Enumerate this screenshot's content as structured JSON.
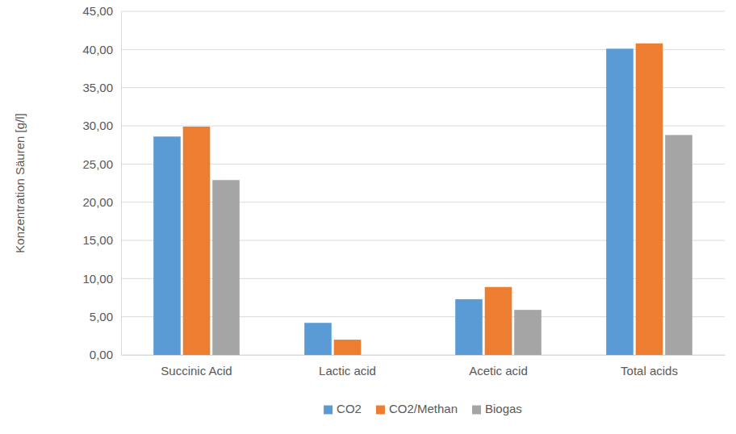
{
  "chart_data": {
    "type": "bar",
    "y_label": "Konzentration Säuren [g/l]",
    "categories": [
      "Succinic Acid",
      "Lactic acid",
      "Acetic acid",
      "Total acids"
    ],
    "series": [
      {
        "name": "CO2",
        "color": "#5b9bd5",
        "values": [
          28.6,
          4.2,
          7.3,
          40.1
        ]
      },
      {
        "name": "CO2/Methan",
        "color": "#ed7d31",
        "values": [
          29.9,
          2.0,
          8.9,
          40.8
        ]
      },
      {
        "name": "Biogas",
        "color": "#a5a5a5",
        "values": [
          22.9,
          0,
          5.9,
          28.8
        ]
      }
    ],
    "ylim": [
      0,
      45
    ],
    "yticks": [
      {
        "value": 0,
        "label": "0,00"
      },
      {
        "value": 5,
        "label": "5,00"
      },
      {
        "value": 10,
        "label": "10,00"
      },
      {
        "value": 15,
        "label": "15,00"
      },
      {
        "value": 20,
        "label": "20,00"
      },
      {
        "value": 25,
        "label": "25,00"
      },
      {
        "value": 30,
        "label": "30,00"
      },
      {
        "value": 35,
        "label": "35,00"
      },
      {
        "value": 40,
        "label": "40,00"
      },
      {
        "value": 45,
        "label": "45,00"
      }
    ],
    "grid": true,
    "legend": "bottom"
  }
}
